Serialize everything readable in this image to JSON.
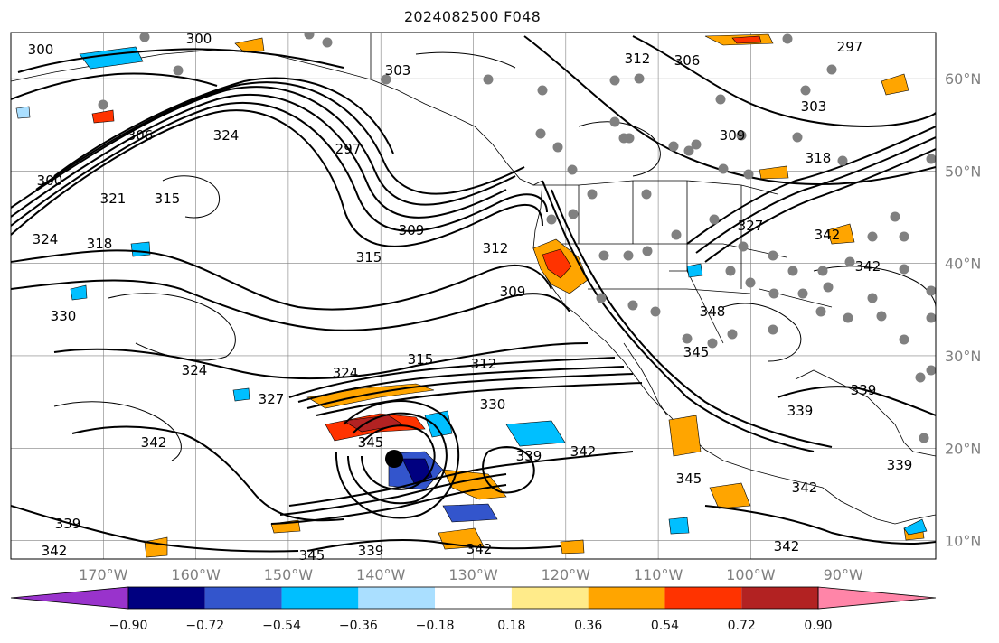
{
  "title": "2024082500 F048",
  "map": {
    "lon_range": [
      -180,
      -80
    ],
    "lat_range": [
      8,
      65
    ],
    "lon_ticks": [
      "170°W",
      "160°W",
      "150°W",
      "140°W",
      "130°W",
      "120°W",
      "110°W",
      "100°W",
      "90°W"
    ],
    "lat_ticks": [
      "60°N",
      "50°N",
      "40°N",
      "30°N",
      "20°N",
      "10°N"
    ],
    "gridlines": true,
    "grid_color": "#808080",
    "contour_color": "#000000",
    "station_dot_color": "#808080",
    "cyclone_center_color": "#000000"
  },
  "contour_labels": [
    {
      "text": "300"
    },
    {
      "text": "300"
    },
    {
      "text": "303"
    },
    {
      "text": "312"
    },
    {
      "text": "306"
    },
    {
      "text": "297"
    },
    {
      "text": "303"
    },
    {
      "text": "309"
    },
    {
      "text": "318"
    },
    {
      "text": "324"
    },
    {
      "text": "306"
    },
    {
      "text": "297"
    },
    {
      "text": "300"
    },
    {
      "text": "321"
    },
    {
      "text": "315"
    },
    {
      "text": "324"
    },
    {
      "text": "318"
    },
    {
      "text": "309"
    },
    {
      "text": "315"
    },
    {
      "text": "312"
    },
    {
      "text": "309"
    },
    {
      "text": "330"
    },
    {
      "text": "324"
    },
    {
      "text": "327"
    },
    {
      "text": "324"
    },
    {
      "text": "315"
    },
    {
      "text": "312"
    },
    {
      "text": "330"
    },
    {
      "text": "327"
    },
    {
      "text": "342"
    },
    {
      "text": "342"
    },
    {
      "text": "345"
    },
    {
      "text": "339"
    },
    {
      "text": "342"
    },
    {
      "text": "345"
    },
    {
      "text": "339"
    },
    {
      "text": "342"
    },
    {
      "text": "339"
    },
    {
      "text": "342"
    },
    {
      "text": "345"
    },
    {
      "text": "339"
    },
    {
      "text": "342"
    },
    {
      "text": "345"
    },
    {
      "text": "348"
    },
    {
      "text": "342"
    },
    {
      "text": "339"
    },
    {
      "text": "342"
    },
    {
      "text": "339"
    }
  ],
  "colorbar": {
    "colors": [
      "#9933cc",
      "#000080",
      "#3355cc",
      "#00bfff",
      "#aadfff",
      "#ffffff",
      "#ffeb8a",
      "#ffa500",
      "#ff3300",
      "#b22222",
      "#ff85a8"
    ],
    "labels": [
      "−0.90",
      "−0.72",
      "−0.54",
      "−0.36",
      "−0.18",
      "0.18",
      "0.36",
      "0.54",
      "0.72",
      "0.90"
    ]
  },
  "shading_colors": {
    "pos_weak": "#ffeb8a",
    "pos_mod": "#ffa500",
    "pos_strong": "#ff3300",
    "pos_xstrong": "#b22222",
    "neg_weak": "#aadfff",
    "neg_mod": "#00bfff",
    "neg_strong": "#3355cc",
    "neg_xstrong": "#000080"
  }
}
